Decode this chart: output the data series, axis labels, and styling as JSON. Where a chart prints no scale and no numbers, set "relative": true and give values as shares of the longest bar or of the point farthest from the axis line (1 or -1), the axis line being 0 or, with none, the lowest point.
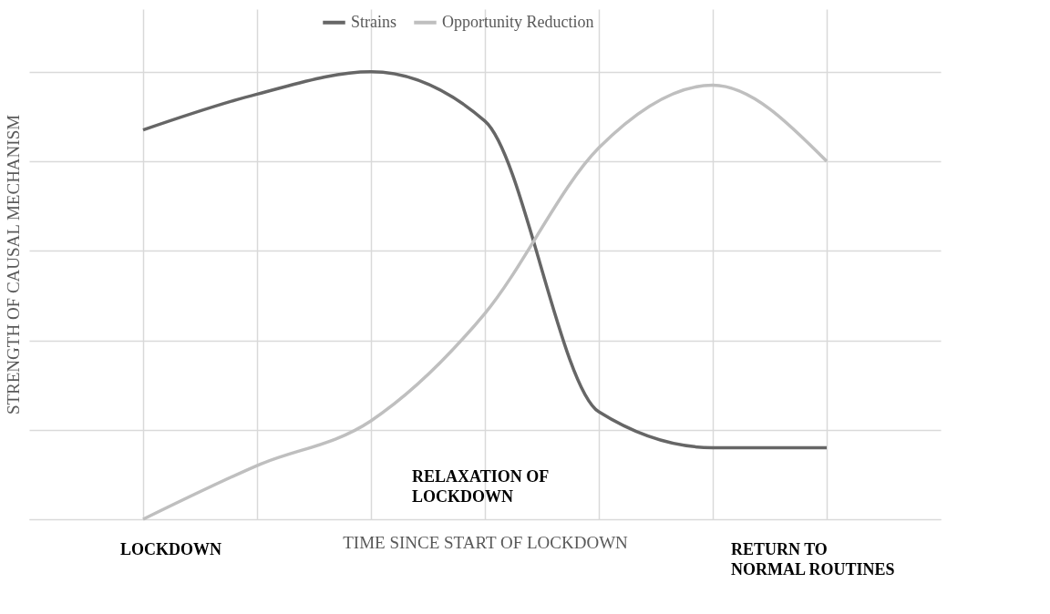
{
  "chart_data": {
    "type": "line",
    "relative": true,
    "xlabel": "TIME SINCE START OF LOCKDOWN",
    "ylabel": "STRENGTH OF CAUSAL MECHANISM",
    "categories": [
      null,
      null,
      null,
      null,
      null,
      null,
      null
    ],
    "series": [
      {
        "name": "Strains",
        "color": "#666666",
        "values": [
          0.87,
          0.95,
          1.0,
          0.89,
          0.24,
          0.16,
          0.16
        ]
      },
      {
        "name": "Opportunity Reduction",
        "color": "#bfbfbf",
        "values": [
          0.0,
          0.12,
          0.22,
          0.46,
          0.83,
          0.97,
          0.8
        ]
      }
    ],
    "annotations": [
      "LOCKDOWN",
      "RELAXATION OF LOCKDOWN",
      "RETURN TO NORMAL ROUTINES"
    ],
    "grid": true,
    "legend": "top",
    "marker": "none",
    "line_style": "solid"
  }
}
